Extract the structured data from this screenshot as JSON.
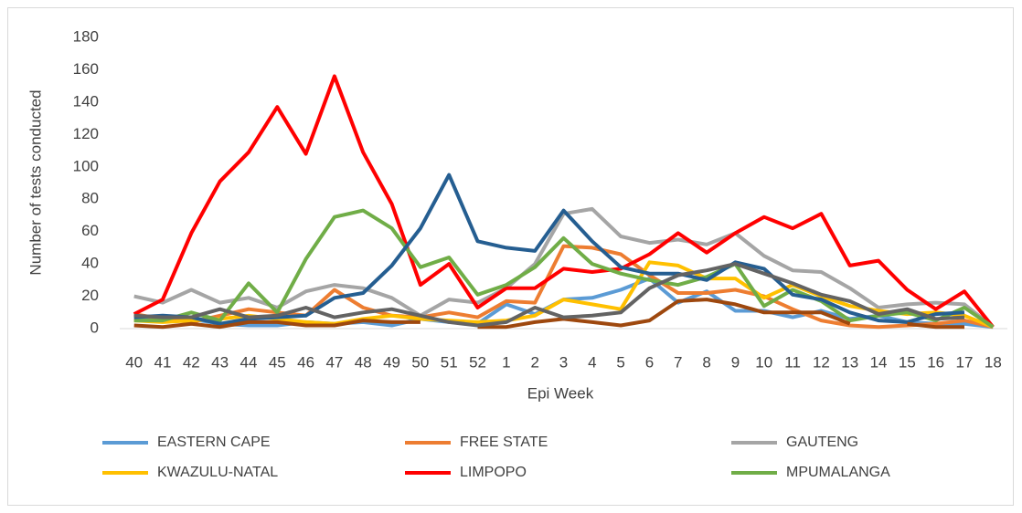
{
  "chart_data": {
    "type": "line",
    "x_label": "Epi Week",
    "y_label": "Number of tests conducted",
    "categories": [
      "40",
      "41",
      "42",
      "43",
      "44",
      "45",
      "46",
      "47",
      "48",
      "49",
      "50",
      "51",
      "52",
      "1",
      "2",
      "3",
      "4",
      "5",
      "6",
      "7",
      "8",
      "9",
      "10",
      "11",
      "12",
      "13",
      "14",
      "15",
      "16",
      "17",
      "18"
    ],
    "ylim": [
      0,
      180
    ],
    "yticks": [
      0,
      20,
      40,
      60,
      80,
      100,
      120,
      140,
      160,
      180
    ],
    "grid": false,
    "series": [
      {
        "name": "EASTERN CAPE",
        "color": "#5b9bd5",
        "values": [
          6,
          5,
          6,
          3,
          2,
          2,
          4,
          3,
          4,
          2,
          6,
          4,
          3,
          15,
          9,
          18,
          19,
          24,
          31,
          16,
          23,
          11,
          11,
          7,
          11,
          6,
          8,
          4,
          3,
          3,
          1
        ]
      },
      {
        "name": "FREE STATE",
        "color": "#ed7d31",
        "values": [
          9,
          6,
          4,
          8,
          12,
          10,
          8,
          24,
          13,
          8,
          7,
          10,
          7,
          17,
          16,
          51,
          50,
          46,
          33,
          22,
          22,
          24,
          20,
          12,
          5,
          2,
          1,
          2,
          3,
          5,
          1
        ]
      },
      {
        "name": "GAUTENG",
        "color": "#a5a5a5",
        "values": [
          20,
          16,
          24,
          16,
          19,
          13,
          23,
          27,
          25,
          19,
          8,
          18,
          16,
          25,
          40,
          71,
          74,
          57,
          53,
          55,
          52,
          59,
          45,
          36,
          35,
          25,
          13,
          15,
          16,
          15,
          1
        ]
      },
      {
        "name": "KWAZULU-NATAL",
        "color": "#ffc000",
        "values": [
          5,
          4,
          5,
          6,
          8,
          6,
          4,
          3,
          6,
          8,
          6,
          5,
          4,
          5,
          8,
          18,
          15,
          12,
          41,
          39,
          31,
          31,
          19,
          27,
          20,
          14,
          11,
          9,
          10,
          8,
          1
        ]
      },
      {
        "name": "LIMPOPO",
        "color": "#ff0000",
        "values": [
          9,
          18,
          59,
          91,
          109,
          137,
          108,
          156,
          109,
          77,
          27,
          40,
          13,
          25,
          25,
          37,
          35,
          37,
          46,
          59,
          47,
          59,
          69,
          62,
          71,
          39,
          42,
          24,
          12,
          23,
          1
        ]
      },
      {
        "name": "MPUMALANGA",
        "color": "#70ad47",
        "values": [
          5,
          5,
          10,
          5,
          28,
          10,
          43,
          69,
          73,
          62,
          38,
          44,
          21,
          27,
          38,
          56,
          40,
          34,
          30,
          27,
          32,
          40,
          14,
          24,
          17,
          5,
          8,
          10,
          5,
          13,
          1
        ]
      },
      {
        "color": "#255e91",
        "values": [
          7,
          8,
          7,
          3,
          6,
          7,
          8,
          19,
          22,
          39,
          62,
          95,
          54,
          50,
          48,
          73,
          54,
          38,
          34,
          34,
          30,
          41,
          37,
          21,
          18,
          10,
          5,
          4,
          9,
          10,
          null
        ]
      },
      {
        "color": "#9e480e",
        "values": [
          2,
          1,
          3,
          1,
          4,
          4,
          2,
          2,
          5,
          4,
          4,
          null,
          1,
          1,
          4,
          6,
          4,
          2,
          5,
          17,
          18,
          15,
          10,
          10,
          10,
          3,
          null,
          3,
          1,
          1,
          null
        ]
      },
      {
        "color": "#636363",
        "values": [
          8,
          7,
          7,
          12,
          7,
          8,
          13,
          7,
          10,
          12,
          8,
          4,
          2,
          4,
          13,
          7,
          8,
          10,
          25,
          33,
          36,
          40,
          34,
          28,
          21,
          17,
          9,
          12,
          6,
          7,
          null
        ]
      }
    ]
  }
}
